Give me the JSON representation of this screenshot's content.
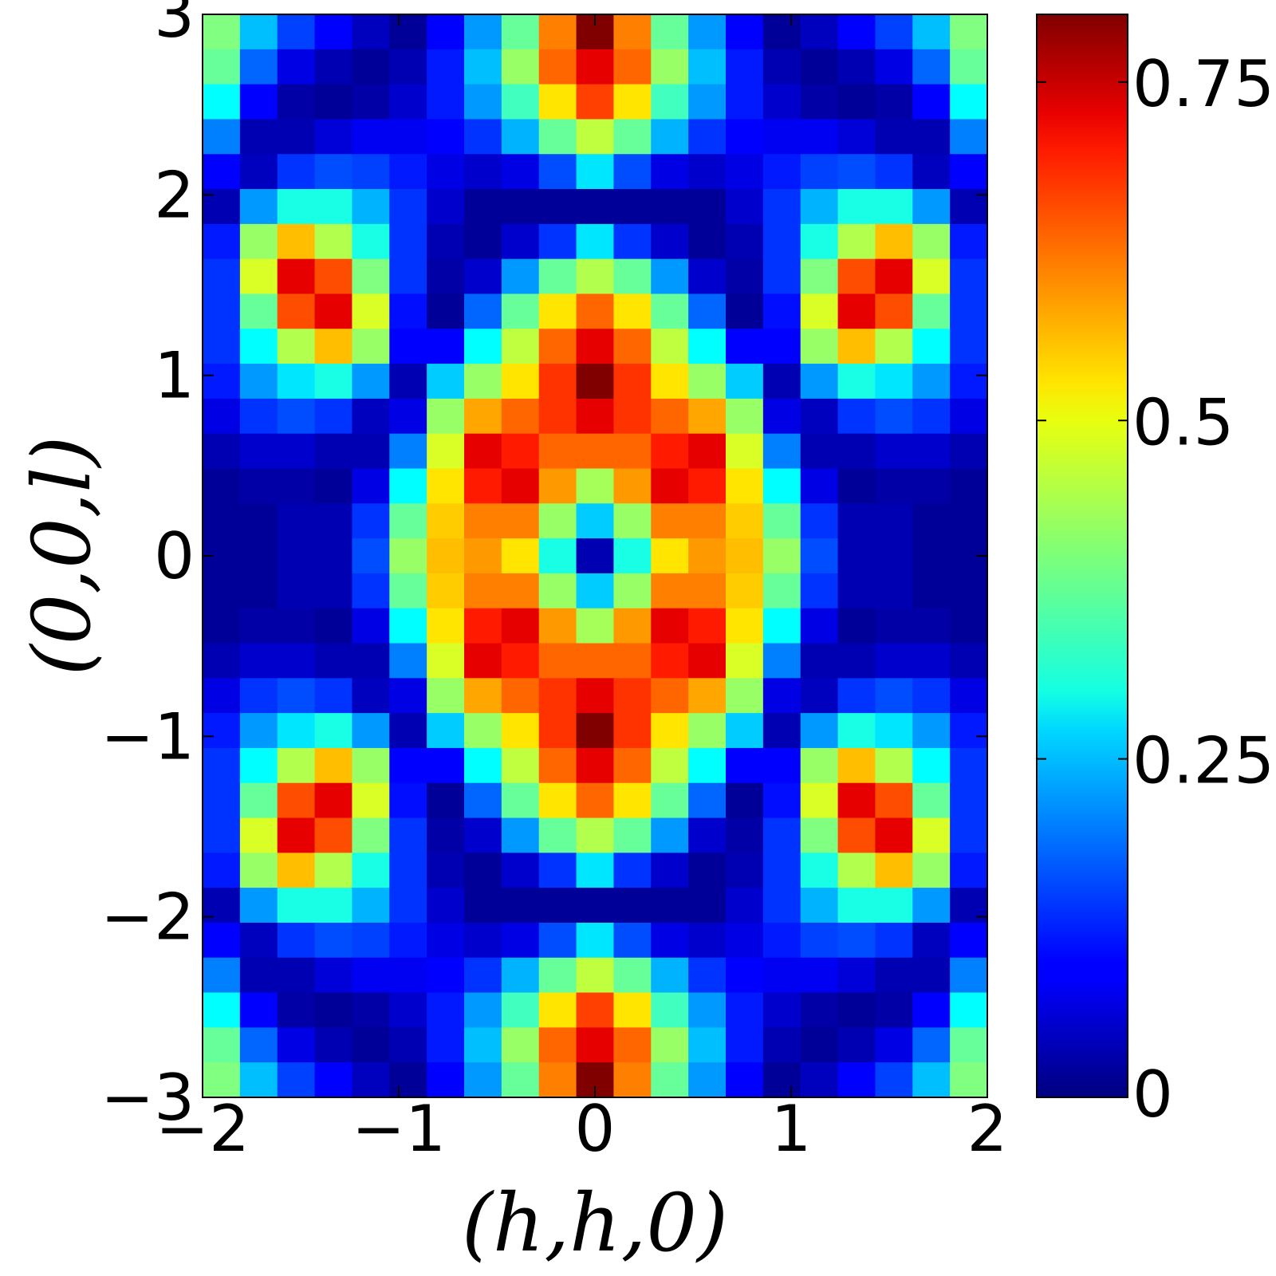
{
  "chart_data": {
    "type": "heatmap",
    "xlabel": "(h,h,0)",
    "ylabel": "(0,0,l)",
    "xlim": [
      -2,
      2
    ],
    "ylim": [
      -3,
      3
    ],
    "x_ticks": [
      -2,
      -1,
      0,
      1,
      2
    ],
    "x_tick_labels": [
      "−2",
      "−1",
      "0",
      "1",
      "2"
    ],
    "y_ticks": [
      -3,
      -2,
      -1,
      0,
      1,
      2,
      3
    ],
    "y_tick_labels": [
      "−3",
      "−2",
      "−1",
      "0",
      "1",
      "2",
      "3"
    ],
    "colorbar": {
      "colormap": "jet",
      "vmin": 0,
      "vmax": 0.8,
      "ticks": [
        0,
        0.25,
        0.5,
        0.75
      ],
      "tick_labels": [
        "0",
        "0.25",
        "0.5",
        "0.75"
      ]
    },
    "grid": false,
    "rows_from_top": [
      [
        0.4,
        0.25,
        0.15,
        0.1,
        0.05,
        0.02,
        0.1,
        0.22,
        0.38,
        0.6,
        0.8,
        0.6,
        0.38,
        0.22,
        0.1,
        0.02,
        0.05,
        0.1,
        0.15,
        0.25,
        0.4
      ],
      [
        0.38,
        0.18,
        0.08,
        0.04,
        0.02,
        0.04,
        0.12,
        0.25,
        0.42,
        0.62,
        0.72,
        0.62,
        0.42,
        0.25,
        0.12,
        0.04,
        0.02,
        0.04,
        0.08,
        0.18,
        0.38
      ],
      [
        0.3,
        0.1,
        0.03,
        0.02,
        0.03,
        0.06,
        0.12,
        0.22,
        0.35,
        0.52,
        0.65,
        0.52,
        0.35,
        0.22,
        0.12,
        0.06,
        0.03,
        0.02,
        0.03,
        0.1,
        0.3
      ],
      [
        0.2,
        0.04,
        0.04,
        0.07,
        0.09,
        0.09,
        0.1,
        0.14,
        0.24,
        0.38,
        0.45,
        0.38,
        0.24,
        0.14,
        0.1,
        0.09,
        0.09,
        0.07,
        0.04,
        0.04,
        0.2
      ],
      [
        0.1,
        0.05,
        0.14,
        0.16,
        0.15,
        0.12,
        0.08,
        0.06,
        0.08,
        0.16,
        0.28,
        0.16,
        0.08,
        0.06,
        0.08,
        0.12,
        0.15,
        0.16,
        0.14,
        0.05,
        0.1
      ],
      [
        0.04,
        0.22,
        0.32,
        0.32,
        0.24,
        0.14,
        0.06,
        0.02,
        0.02,
        0.02,
        0.02,
        0.02,
        0.02,
        0.02,
        0.06,
        0.14,
        0.24,
        0.32,
        0.32,
        0.22,
        0.04
      ],
      [
        0.12,
        0.42,
        0.55,
        0.44,
        0.32,
        0.14,
        0.04,
        0.02,
        0.06,
        0.14,
        0.28,
        0.14,
        0.06,
        0.02,
        0.04,
        0.14,
        0.32,
        0.44,
        0.55,
        0.42,
        0.12
      ],
      [
        0.14,
        0.47,
        0.72,
        0.64,
        0.4,
        0.14,
        0.03,
        0.06,
        0.22,
        0.38,
        0.44,
        0.38,
        0.22,
        0.06,
        0.03,
        0.14,
        0.4,
        0.64,
        0.72,
        0.47,
        0.14
      ],
      [
        0.14,
        0.38,
        0.64,
        0.72,
        0.47,
        0.11,
        0.02,
        0.18,
        0.38,
        0.52,
        0.62,
        0.52,
        0.38,
        0.18,
        0.02,
        0.11,
        0.47,
        0.72,
        0.64,
        0.38,
        0.14
      ],
      [
        0.14,
        0.3,
        0.44,
        0.55,
        0.42,
        0.1,
        0.1,
        0.3,
        0.45,
        0.62,
        0.72,
        0.62,
        0.45,
        0.3,
        0.1,
        0.1,
        0.42,
        0.55,
        0.44,
        0.3,
        0.14
      ],
      [
        0.12,
        0.22,
        0.28,
        0.32,
        0.22,
        0.04,
        0.26,
        0.42,
        0.52,
        0.66,
        0.8,
        0.66,
        0.52,
        0.42,
        0.26,
        0.04,
        0.22,
        0.32,
        0.28,
        0.22,
        0.12
      ],
      [
        0.08,
        0.14,
        0.16,
        0.14,
        0.05,
        0.08,
        0.42,
        0.57,
        0.62,
        0.66,
        0.72,
        0.66,
        0.62,
        0.57,
        0.42,
        0.08,
        0.05,
        0.14,
        0.16,
        0.14,
        0.08
      ],
      [
        0.04,
        0.06,
        0.06,
        0.04,
        0.04,
        0.2,
        0.47,
        0.72,
        0.68,
        0.62,
        0.62,
        0.62,
        0.68,
        0.72,
        0.47,
        0.2,
        0.04,
        0.04,
        0.06,
        0.06,
        0.04
      ],
      [
        0.02,
        0.03,
        0.03,
        0.02,
        0.08,
        0.3,
        0.52,
        0.68,
        0.72,
        0.58,
        0.43,
        0.58,
        0.72,
        0.68,
        0.52,
        0.3,
        0.08,
        0.02,
        0.03,
        0.03,
        0.02
      ],
      [
        0.02,
        0.02,
        0.04,
        0.04,
        0.14,
        0.38,
        0.54,
        0.6,
        0.6,
        0.42,
        0.26,
        0.42,
        0.6,
        0.6,
        0.54,
        0.38,
        0.14,
        0.04,
        0.04,
        0.02,
        0.02
      ],
      [
        0.02,
        0.02,
        0.04,
        0.04,
        0.16,
        0.42,
        0.55,
        0.58,
        0.52,
        0.32,
        0.04,
        0.32,
        0.52,
        0.58,
        0.55,
        0.42,
        0.16,
        0.04,
        0.04,
        0.02,
        0.02
      ],
      [
        0.02,
        0.02,
        0.04,
        0.04,
        0.14,
        0.38,
        0.54,
        0.6,
        0.6,
        0.42,
        0.26,
        0.42,
        0.6,
        0.6,
        0.54,
        0.38,
        0.14,
        0.04,
        0.04,
        0.02,
        0.02
      ],
      [
        0.02,
        0.03,
        0.03,
        0.02,
        0.08,
        0.3,
        0.52,
        0.68,
        0.72,
        0.58,
        0.43,
        0.58,
        0.72,
        0.68,
        0.52,
        0.3,
        0.08,
        0.02,
        0.03,
        0.03,
        0.02
      ],
      [
        0.04,
        0.06,
        0.06,
        0.04,
        0.04,
        0.2,
        0.47,
        0.72,
        0.68,
        0.62,
        0.62,
        0.62,
        0.68,
        0.72,
        0.47,
        0.2,
        0.04,
        0.04,
        0.06,
        0.06,
        0.04
      ],
      [
        0.08,
        0.14,
        0.16,
        0.14,
        0.05,
        0.08,
        0.42,
        0.57,
        0.62,
        0.66,
        0.72,
        0.66,
        0.62,
        0.57,
        0.42,
        0.08,
        0.05,
        0.14,
        0.16,
        0.14,
        0.08
      ],
      [
        0.12,
        0.22,
        0.28,
        0.32,
        0.22,
        0.04,
        0.26,
        0.42,
        0.52,
        0.66,
        0.8,
        0.66,
        0.52,
        0.42,
        0.26,
        0.04,
        0.22,
        0.32,
        0.28,
        0.22,
        0.12
      ],
      [
        0.14,
        0.3,
        0.44,
        0.55,
        0.42,
        0.1,
        0.1,
        0.3,
        0.45,
        0.62,
        0.72,
        0.62,
        0.45,
        0.3,
        0.1,
        0.1,
        0.42,
        0.55,
        0.44,
        0.3,
        0.14
      ],
      [
        0.14,
        0.38,
        0.64,
        0.72,
        0.47,
        0.11,
        0.02,
        0.18,
        0.38,
        0.52,
        0.62,
        0.52,
        0.38,
        0.18,
        0.02,
        0.11,
        0.47,
        0.72,
        0.64,
        0.38,
        0.14
      ],
      [
        0.14,
        0.47,
        0.72,
        0.64,
        0.4,
        0.14,
        0.03,
        0.06,
        0.22,
        0.38,
        0.44,
        0.38,
        0.22,
        0.06,
        0.03,
        0.14,
        0.4,
        0.64,
        0.72,
        0.47,
        0.14
      ],
      [
        0.12,
        0.42,
        0.55,
        0.44,
        0.32,
        0.14,
        0.04,
        0.02,
        0.06,
        0.14,
        0.28,
        0.14,
        0.06,
        0.02,
        0.04,
        0.14,
        0.32,
        0.44,
        0.55,
        0.42,
        0.12
      ],
      [
        0.04,
        0.22,
        0.32,
        0.32,
        0.24,
        0.14,
        0.06,
        0.02,
        0.02,
        0.02,
        0.02,
        0.02,
        0.02,
        0.02,
        0.06,
        0.14,
        0.24,
        0.32,
        0.32,
        0.22,
        0.04
      ],
      [
        0.1,
        0.05,
        0.14,
        0.16,
        0.15,
        0.12,
        0.08,
        0.06,
        0.08,
        0.16,
        0.28,
        0.16,
        0.08,
        0.06,
        0.08,
        0.12,
        0.15,
        0.16,
        0.14,
        0.05,
        0.1
      ],
      [
        0.2,
        0.04,
        0.04,
        0.07,
        0.09,
        0.09,
        0.1,
        0.14,
        0.24,
        0.38,
        0.45,
        0.38,
        0.24,
        0.14,
        0.1,
        0.09,
        0.09,
        0.07,
        0.04,
        0.04,
        0.2
      ],
      [
        0.3,
        0.1,
        0.03,
        0.02,
        0.03,
        0.06,
        0.12,
        0.22,
        0.35,
        0.52,
        0.65,
        0.52,
        0.35,
        0.22,
        0.12,
        0.06,
        0.03,
        0.02,
        0.03,
        0.1,
        0.3
      ],
      [
        0.38,
        0.18,
        0.08,
        0.04,
        0.02,
        0.04,
        0.12,
        0.25,
        0.42,
        0.62,
        0.72,
        0.62,
        0.42,
        0.25,
        0.12,
        0.04,
        0.02,
        0.04,
        0.08,
        0.18,
        0.38
      ],
      [
        0.4,
        0.25,
        0.15,
        0.1,
        0.05,
        0.02,
        0.1,
        0.22,
        0.38,
        0.6,
        0.8,
        0.6,
        0.38,
        0.22,
        0.1,
        0.02,
        0.05,
        0.1,
        0.15,
        0.25,
        0.4
      ]
    ]
  }
}
